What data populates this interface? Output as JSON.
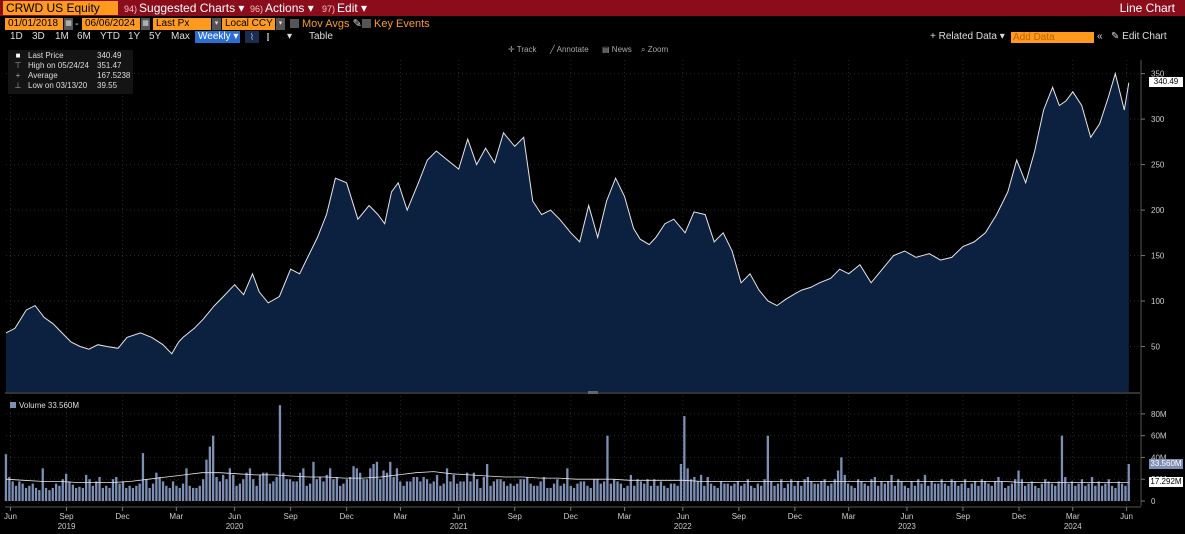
{
  "toolbar": {
    "ticker": "CRWD US Equity",
    "suggested": {
      "num": "94)",
      "label": "Suggested Charts"
    },
    "actions": {
      "num": "96)",
      "label": "Actions"
    },
    "edit": {
      "num": "97)",
      "label": "Edit"
    },
    "chart_type": "Line Chart"
  },
  "controls": {
    "start_date": "01/01/2018",
    "date_sep": "-",
    "end_date": "06/06/2024",
    "price_field": "Last Px",
    "currency": "Local CCY",
    "mov_avgs": "Mov Avgs",
    "key_events": "Key Events"
  },
  "periods": [
    "1D",
    "3D",
    "1M",
    "6M",
    "YTD",
    "1Y",
    "5Y",
    "Max"
  ],
  "frequency": "Weekly",
  "table_label": "Table",
  "related_data": "+ Related Data",
  "add_data_placeholder": "Add Data",
  "edit_chart": "Edit Chart",
  "tools": {
    "track": "Track",
    "annotate": "Annotate",
    "news": "News",
    "zoom": "Zoom"
  },
  "legend": [
    {
      "key": "Last Price",
      "value": "340.49"
    },
    {
      "key": "High on 05/24/24",
      "value": "351.47"
    },
    {
      "key": "Average",
      "value": "167.5238"
    },
    {
      "key": "Low on 03/13/20",
      "value": "39.55"
    }
  ],
  "volume_legend": "Volume 33.560M",
  "last_price_tag": "340.49",
  "volume_tag": "33.560M",
  "volume_avg_tag": "17.292M",
  "colors": {
    "accent": "#ff9a1f",
    "topbar": "#8b0d1c",
    "area": "#0c2040",
    "line": "#e6e6e6",
    "volume": "#7d8fb5"
  },
  "chart_data": {
    "type": "area",
    "title": "",
    "price_axis_ticks": [
      50,
      100,
      150,
      200,
      250,
      300,
      350
    ],
    "price_range": [
      0,
      365
    ],
    "volume_axis_ticks": [
      "0",
      "20M",
      "40M",
      "60M",
      "80M"
    ],
    "volume_axis_values": [
      0,
      20,
      40,
      60,
      80
    ],
    "volume_range": [
      0,
      90
    ],
    "month_ticks": [
      {
        "label": "Jun",
        "date": 2019.45
      },
      {
        "label": "Sep",
        "date": 2019.7
      },
      {
        "label": "Dec",
        "date": 2019.95
      },
      {
        "label": "Mar",
        "date": 2020.19
      },
      {
        "label": "Jun",
        "date": 2020.45
      },
      {
        "label": "Sep",
        "date": 2020.7
      },
      {
        "label": "Dec",
        "date": 2020.95
      },
      {
        "label": "Mar",
        "date": 2021.19
      },
      {
        "label": "Jun",
        "date": 2021.45
      },
      {
        "label": "Sep",
        "date": 2021.7
      },
      {
        "label": "Dec",
        "date": 2021.95
      },
      {
        "label": "Mar",
        "date": 2022.19
      },
      {
        "label": "Jun",
        "date": 2022.45
      },
      {
        "label": "Sep",
        "date": 2022.7
      },
      {
        "label": "Dec",
        "date": 2022.95
      },
      {
        "label": "Mar",
        "date": 2023.19
      },
      {
        "label": "Jun",
        "date": 2023.45
      },
      {
        "label": "Sep",
        "date": 2023.7
      },
      {
        "label": "Dec",
        "date": 2023.95
      },
      {
        "label": "Mar",
        "date": 2024.19
      },
      {
        "label": "Jun",
        "date": 2024.43
      }
    ],
    "year_ticks": [
      {
        "label": "2019",
        "date": 2019.7
      },
      {
        "label": "2020",
        "date": 2020.45
      },
      {
        "label": "2021",
        "date": 2021.45
      },
      {
        "label": "2022",
        "date": 2022.45
      },
      {
        "label": "2023",
        "date": 2023.45
      },
      {
        "label": "2024",
        "date": 2024.19
      }
    ],
    "x_range": [
      2019.43,
      2024.49
    ],
    "price_series": {
      "x": [
        2019.43,
        2019.47,
        2019.52,
        2019.56,
        2019.6,
        2019.64,
        2019.68,
        2019.72,
        2019.76,
        2019.8,
        2019.84,
        2019.88,
        2019.93,
        2019.97,
        2020.03,
        2020.08,
        2020.13,
        2020.17,
        2020.2,
        2020.22,
        2020.27,
        2020.31,
        2020.36,
        2020.4,
        2020.45,
        2020.49,
        2020.53,
        2020.56,
        2020.6,
        2020.65,
        2020.7,
        2020.74,
        2020.78,
        2020.82,
        2020.86,
        2020.9,
        2020.95,
        2021.0,
        2021.05,
        2021.09,
        2021.12,
        2021.15,
        2021.18,
        2021.22,
        2021.27,
        2021.31,
        2021.35,
        2021.4,
        2021.45,
        2021.49,
        2021.53,
        2021.57,
        2021.61,
        2021.65,
        2021.7,
        2021.74,
        2021.78,
        2021.82,
        2021.86,
        2021.9,
        2021.95,
        2021.99,
        2022.03,
        2022.07,
        2022.11,
        2022.15,
        2022.19,
        2022.23,
        2022.26,
        2022.3,
        2022.33,
        2022.37,
        2022.41,
        2022.46,
        2022.5,
        2022.55,
        2022.59,
        2022.63,
        2022.67,
        2022.71,
        2022.75,
        2022.79,
        2022.83,
        2022.87,
        2022.91,
        2022.95,
        2022.98,
        2023.02,
        2023.06,
        2023.11,
        2023.15,
        2023.19,
        2023.24,
        2023.29,
        2023.34,
        2023.39,
        2023.44,
        2023.49,
        2023.55,
        2023.6,
        2023.65,
        2023.7,
        2023.75,
        2023.8,
        2023.85,
        2023.9,
        2023.94,
        2023.98,
        2024.02,
        2024.06,
        2024.1,
        2024.13,
        2024.16,
        2024.19,
        2024.23,
        2024.27,
        2024.31,
        2024.35,
        2024.38,
        2024.42,
        2024.44
      ],
      "y": [
        65,
        70,
        90,
        95,
        82,
        75,
        65,
        55,
        50,
        47,
        52,
        50,
        48,
        60,
        65,
        60,
        52,
        42,
        55,
        60,
        70,
        80,
        95,
        105,
        118,
        107,
        130,
        110,
        98,
        105,
        135,
        130,
        150,
        170,
        195,
        235,
        230,
        190,
        205,
        195,
        185,
        220,
        230,
        200,
        230,
        255,
        265,
        255,
        245,
        278,
        250,
        268,
        252,
        285,
        270,
        280,
        210,
        195,
        200,
        190,
        175,
        165,
        205,
        170,
        210,
        235,
        215,
        180,
        168,
        162,
        170,
        185,
        190,
        175,
        198,
        195,
        165,
        175,
        155,
        120,
        130,
        112,
        100,
        95,
        102,
        108,
        112,
        115,
        120,
        125,
        135,
        130,
        140,
        120,
        135,
        150,
        155,
        148,
        152,
        145,
        148,
        160,
        165,
        175,
        195,
        220,
        255,
        230,
        265,
        310,
        335,
        315,
        320,
        330,
        315,
        280,
        295,
        325,
        350,
        310,
        340
      ]
    },
    "volume_series": {
      "description_free": "",
      "values": [
        43,
        22,
        18,
        14,
        18,
        16,
        12,
        14,
        16,
        12,
        10,
        30,
        12,
        10,
        12,
        16,
        14,
        20,
        25,
        18,
        15,
        12,
        13,
        12,
        24,
        20,
        14,
        18,
        22,
        12,
        14,
        12,
        20,
        22,
        16,
        18,
        12,
        14,
        12,
        14,
        16,
        44,
        20,
        12,
        16,
        26,
        22,
        18,
        14,
        12,
        18,
        14,
        12,
        16,
        30,
        14,
        12,
        12,
        14,
        20,
        38,
        50,
        60,
        22,
        18,
        24,
        20,
        30,
        24,
        14,
        16,
        20,
        26,
        30,
        20,
        14,
        24,
        26,
        26,
        16,
        18,
        22,
        88,
        26,
        20,
        20,
        18,
        18,
        26,
        30,
        14,
        16,
        36,
        20,
        22,
        18,
        24,
        30,
        20,
        22,
        14,
        16,
        20,
        22,
        32,
        30,
        26,
        20,
        20,
        30,
        34,
        36,
        20,
        28,
        26,
        36,
        22,
        30,
        18,
        14,
        18,
        18,
        22,
        22,
        18,
        22,
        20,
        16,
        18,
        24,
        14,
        16,
        30,
        18,
        24,
        16,
        18,
        18,
        26,
        18,
        26,
        20,
        12,
        22,
        34,
        14,
        18,
        20,
        20,
        18,
        14,
        16,
        14,
        16,
        20,
        20,
        22,
        16,
        14,
        14,
        18,
        22,
        12,
        12,
        16,
        20,
        14,
        16,
        30,
        14,
        12,
        16,
        18,
        18,
        14,
        12,
        20,
        20,
        16,
        18,
        60,
        16,
        20,
        18,
        16,
        12,
        14,
        24,
        14,
        20,
        18,
        16,
        20,
        14,
        20,
        14,
        18,
        14,
        12,
        16,
        16,
        14,
        34,
        78,
        30,
        20,
        22,
        18,
        24,
        14,
        22,
        16,
        14,
        12,
        18,
        16,
        16,
        14,
        16,
        18,
        14,
        16,
        20,
        14,
        12,
        16,
        14,
        20,
        60,
        18,
        14,
        16,
        20,
        12,
        16,
        20,
        14,
        18,
        14,
        20,
        22,
        18,
        16,
        16,
        18,
        20,
        14,
        16,
        20,
        28,
        40,
        24,
        16,
        14,
        12,
        20,
        18,
        16,
        14,
        20,
        22,
        14,
        18,
        16,
        18,
        24,
        14,
        20,
        18,
        14,
        12,
        18,
        14,
        20,
        16,
        24,
        14,
        18,
        16,
        16,
        20,
        16,
        14,
        20,
        18,
        14,
        16,
        20,
        12,
        16,
        18,
        14,
        20,
        18,
        16,
        14,
        18,
        22,
        18,
        12,
        14,
        16,
        20,
        28,
        20,
        14,
        16,
        18,
        14,
        12,
        16,
        20,
        18,
        16,
        14,
        18,
        60,
        22,
        16,
        18,
        14,
        16,
        20,
        14,
        16,
        22,
        14,
        18,
        14,
        16,
        20,
        14,
        12,
        18,
        16,
        14,
        34
      ]
    },
    "volume_avg": [
      20,
      19,
      18,
      18,
      17,
      17,
      17,
      18,
      20,
      22,
      24,
      26,
      26,
      25,
      24,
      24,
      23,
      22,
      22,
      21,
      21,
      22,
      24,
      26,
      27,
      25,
      24,
      23,
      22,
      22,
      21,
      21,
      20,
      20,
      20,
      19,
      19,
      19,
      19,
      18,
      18,
      18,
      18,
      18,
      18,
      18,
      18,
      18,
      18,
      18,
      18,
      18,
      18,
      18,
      18,
      18,
      18,
      17,
      17,
      17,
      17,
      17,
      17,
      17
    ]
  }
}
